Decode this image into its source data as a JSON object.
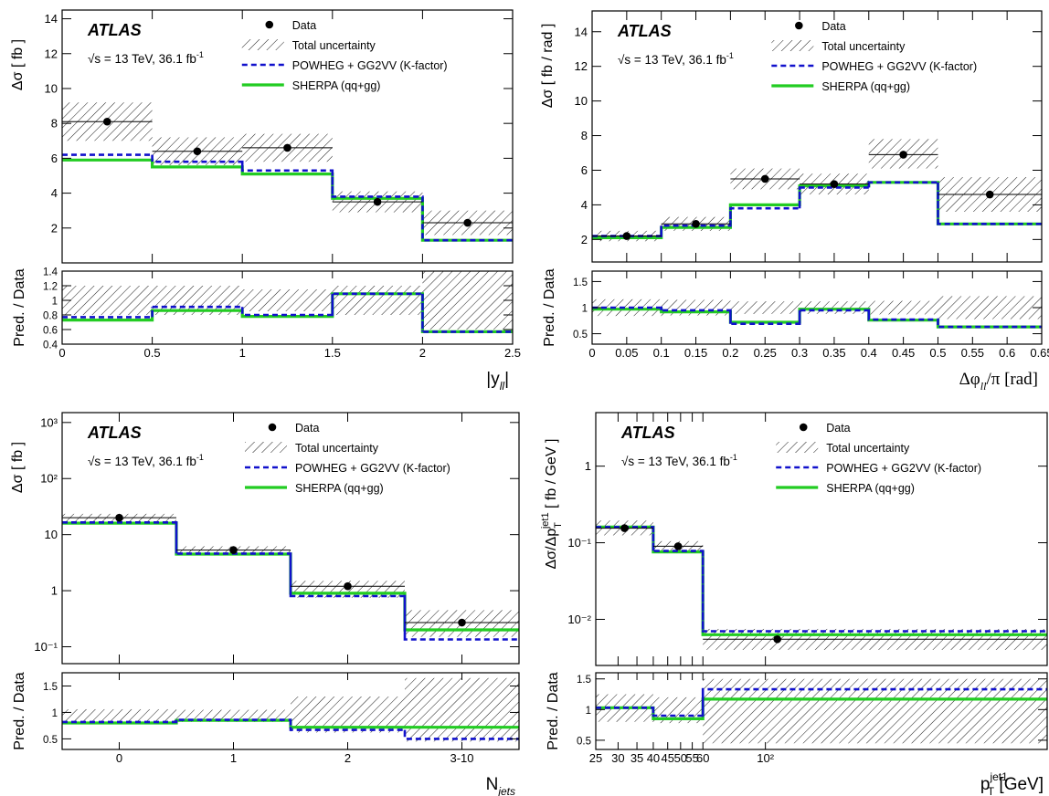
{
  "legend": {
    "data": "Data",
    "total_uncertainty": "Total uncertainty",
    "powheg": "POWHEG + GG2VV (K-factor)",
    "sherpa": "SHERPA (qq+gg)"
  },
  "atlas_label": "ATLAS",
  "energy_prefix": "√s = 13 TeV, 36.1 fb",
  "energy_exp": "-1",
  "colors": {
    "sherpa": "#22cc22",
    "powheg": "#1111cc",
    "data": "#000000"
  },
  "chart_data": [
    {
      "id": "yll",
      "type": "bar",
      "ylabel": "Δσ  [ fb ]",
      "ratio_ylabel": "Pred. / Data",
      "xlabel_main": "|y",
      "xlabel_sub": "ll",
      "xlabel_tail": "|",
      "bin_edges": [
        0,
        0.5,
        1,
        1.5,
        2,
        2.5
      ],
      "xlim": [
        0,
        2.5
      ],
      "ylim": [
        0,
        14.5
      ],
      "ylog": false,
      "xticks": [
        0,
        0.5,
        1,
        1.5,
        2,
        2.5
      ],
      "xtick_labels": [
        "0",
        "0.5",
        "1",
        "1.5",
        "2",
        "2.5"
      ],
      "yticks": [
        2,
        4,
        6,
        8,
        10,
        12,
        14
      ],
      "ytick_labels": [
        "2",
        "4",
        "6",
        "8",
        "10",
        "12",
        "14"
      ],
      "data": [
        8.1,
        6.4,
        6.6,
        3.5,
        2.3
      ],
      "unc_low": [
        7.0,
        5.6,
        5.8,
        2.9,
        1.6
      ],
      "unc_high": [
        9.2,
        7.2,
        7.4,
        4.1,
        3.0
      ],
      "powheg": [
        6.2,
        5.8,
        5.3,
        3.8,
        1.3
      ],
      "sherpa": [
        5.9,
        5.5,
        5.1,
        3.7,
        1.3
      ],
      "ratio_ylim": [
        0.4,
        1.4
      ],
      "ratio_yticks": [
        0.4,
        0.6,
        0.8,
        1,
        1.2,
        1.4
      ],
      "ratio_ytick_labels": [
        "0.4",
        "0.6",
        "0.8",
        "1",
        "1.2",
        "1.4"
      ],
      "ratio_unc_low": [
        0.8,
        0.8,
        0.85,
        0.8,
        0.6
      ],
      "ratio_unc_high": [
        1.2,
        1.2,
        1.15,
        1.2,
        1.4
      ],
      "ratio_powheg": [
        0.77,
        0.91,
        0.8,
        1.09,
        0.57
      ],
      "ratio_sherpa": [
        0.73,
        0.86,
        0.78,
        1.09,
        0.57
      ]
    },
    {
      "id": "dphi",
      "type": "bar",
      "ylabel": "Δσ  [ fb / rad ]",
      "ratio_ylabel": "Pred. / Data",
      "xlabel_main": "Δφ",
      "xlabel_sub": "ll",
      "xlabel_tail": "/π [rad]",
      "bin_edges": [
        0,
        0.1,
        0.2,
        0.3,
        0.4,
        0.5,
        0.65
      ],
      "xlim": [
        0,
        0.65
      ],
      "ylim": [
        0.7,
        15.2
      ],
      "ylog": false,
      "xticks": [
        0,
        0.05,
        0.1,
        0.15,
        0.2,
        0.25,
        0.3,
        0.35,
        0.4,
        0.45,
        0.5,
        0.55,
        0.6,
        0.65
      ],
      "xtick_labels": [
        "0",
        "0.05",
        "0.1",
        "0.15",
        "0.2",
        "0.25",
        "0.3",
        "0.35",
        "0.4",
        "0.45",
        "0.5",
        "0.55",
        "0.6",
        "0.65"
      ],
      "yticks": [
        2,
        4,
        6,
        8,
        10,
        12,
        14
      ],
      "ytick_labels": [
        "2",
        "4",
        "6",
        "8",
        "10",
        "12",
        "14"
      ],
      "data": [
        2.2,
        2.9,
        5.5,
        5.2,
        6.9,
        4.6
      ],
      "unc_low": [
        1.9,
        2.5,
        4.9,
        4.6,
        6.1,
        3.6
      ],
      "unc_high": [
        2.5,
        3.3,
        6.1,
        5.8,
        7.8,
        5.6
      ],
      "powheg": [
        2.2,
        2.8,
        3.8,
        5.0,
        5.3,
        2.9
      ],
      "sherpa": [
        2.1,
        2.7,
        4.0,
        5.1,
        5.3,
        2.9
      ],
      "ratio_ylim": [
        0.3,
        1.7
      ],
      "ratio_yticks": [
        0.5,
        1,
        1.5
      ],
      "ratio_ytick_labels": [
        "0.5",
        "1",
        "1.5"
      ],
      "ratio_unc_low": [
        0.84,
        0.85,
        0.88,
        0.88,
        0.87,
        0.78
      ],
      "ratio_unc_high": [
        1.16,
        1.15,
        1.12,
        1.12,
        1.13,
        1.22
      ],
      "ratio_powheg": [
        1.0,
        0.95,
        0.69,
        0.95,
        0.77,
        0.63
      ],
      "ratio_sherpa": [
        0.97,
        0.92,
        0.72,
        0.97,
        0.76,
        0.63
      ]
    },
    {
      "id": "njets",
      "type": "bar",
      "ylabel": "Δσ  [ fb ]",
      "ratio_ylabel": "Pred. / Data",
      "xlabel_main": "N",
      "xlabel_sub": "jets",
      "xlabel_tail": "",
      "bin_edges": [
        -0.5,
        0.5,
        1.5,
        2.5,
        3.5
      ],
      "xlim": [
        -0.5,
        3.5
      ],
      "ylim": [
        0.05,
        1500
      ],
      "ylog": true,
      "xticks": [
        0,
        1,
        2,
        3
      ],
      "xtick_labels": [
        "0",
        "1",
        "2",
        "3-10"
      ],
      "yticks": [
        0.1,
        1,
        10,
        100,
        1000
      ],
      "ytick_labels": [
        "10⁻¹",
        "1",
        "10",
        "10²",
        "10³"
      ],
      "data": [
        20,
        5.3,
        1.2,
        0.27
      ],
      "unc_low": [
        16,
        4.3,
        0.75,
        0.15
      ],
      "unc_high": [
        23.5,
        6.2,
        1.5,
        0.45
      ],
      "powheg": [
        16.5,
        4.6,
        0.8,
        0.135
      ],
      "sherpa": [
        16.0,
        4.5,
        0.9,
        0.2
      ],
      "ratio_ylim": [
        0.3,
        1.75
      ],
      "ratio_yticks": [
        0.5,
        1,
        1.5
      ],
      "ratio_ytick_labels": [
        "0.5",
        "1",
        "1.5"
      ],
      "ratio_unc_low": [
        0.8,
        0.82,
        0.62,
        0.45
      ],
      "ratio_unc_high": [
        1.06,
        1.05,
        1.3,
        1.65
      ],
      "ratio_powheg": [
        0.82,
        0.86,
        0.67,
        0.5
      ],
      "ratio_sherpa": [
        0.8,
        0.85,
        0.72,
        0.72
      ]
    },
    {
      "id": "ptjet",
      "type": "bar",
      "ylabel": "Δσ/Δp",
      "ylabel_sup": "jet1",
      "ylabel_sub": "T",
      "ylabel_tail": "  [ fb / GeV ]",
      "ratio_ylabel": "Pred. / Data",
      "xlabel_main": "p",
      "xlabel_sup": "jet1",
      "xlabel_sub": "T",
      "xlabel_tail": " [GeV]",
      "bin_edges": [
        25,
        40,
        60,
        1000
      ],
      "xlim": [
        25,
        1000
      ],
      "xlog": true,
      "ylim": [
        0.0025,
        5
      ],
      "ylog": true,
      "xticks": [
        25,
        30,
        35,
        40,
        45,
        50,
        55,
        60,
        100
      ],
      "xtick_labels": [
        "25",
        "30",
        "35",
        "40",
        "45",
        "50",
        "55",
        "60",
        "10²"
      ],
      "yticks": [
        0.01,
        0.1,
        1
      ],
      "ytick_labels": [
        "10⁻²",
        "10⁻¹",
        "1"
      ],
      "data": [
        0.155,
        0.09,
        0.0055
      ],
      "unc_low": [
        0.125,
        0.073,
        0.004
      ],
      "unc_high": [
        0.195,
        0.105,
        0.0075
      ],
      "powheg": [
        0.16,
        0.078,
        0.007
      ],
      "sherpa": [
        0.16,
        0.076,
        0.0063
      ],
      "ratio_ylim": [
        0.35,
        1.6
      ],
      "ratio_yticks": [
        0.5,
        1,
        1.5
      ],
      "ratio_ytick_labels": [
        "0.5",
        "1",
        "1.5"
      ],
      "ratio_unc_low": [
        0.8,
        0.78,
        0.45
      ],
      "ratio_unc_high": [
        1.25,
        1.2,
        1.5
      ],
      "ratio_powheg": [
        1.03,
        0.9,
        1.33
      ],
      "ratio_sherpa": [
        1.03,
        0.85,
        1.17
      ]
    }
  ]
}
